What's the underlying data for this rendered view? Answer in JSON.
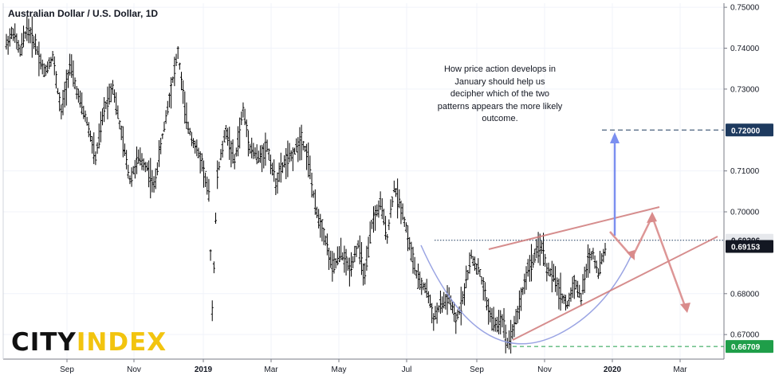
{
  "chart_data": {
    "type": "bar",
    "title": "Australian Dollar / U.S. Dollar, 1D",
    "ylim": [
      0.664,
      0.751
    ],
    "y_ticks": [
      "0.75000",
      "0.74000",
      "0.73000",
      "0.71000",
      "0.70000",
      "0.68000",
      "0.67000"
    ],
    "x_ticks": [
      "Sep",
      "Nov",
      "2019",
      "Mar",
      "May",
      "Jul",
      "Sep",
      "Nov",
      "2020",
      "Mar"
    ],
    "x_bold_ticks": [
      "2019",
      "2020"
    ],
    "price_labels": [
      {
        "text": "0.72000",
        "value": 0.72,
        "bg": "#1e3a5f",
        "fg": "#ffffff"
      },
      {
        "text": "0.69306",
        "value": 0.69306,
        "bg": "#e6e8ec",
        "fg": "#131722"
      },
      {
        "text": "0.69153",
        "value": 0.69153,
        "bg": "#131722",
        "fg": "#ffffff"
      },
      {
        "text": "0.66709",
        "value": 0.66709,
        "bg": "#1f9e49",
        "fg": "#ffffff"
      }
    ],
    "annotation": "How price action develops in January should help us decipher which of the two patterns appears the more likely outcome.",
    "price_path": [
      [
        0,
        0.741
      ],
      [
        4,
        0.744
      ],
      [
        8,
        0.739
      ],
      [
        12,
        0.745
      ],
      [
        17,
        0.741
      ],
      [
        22,
        0.734
      ],
      [
        27,
        0.738
      ],
      [
        32,
        0.724
      ],
      [
        37,
        0.736
      ],
      [
        42,
        0.728
      ],
      [
        47,
        0.722
      ],
      [
        52,
        0.713
      ],
      [
        57,
        0.725
      ],
      [
        62,
        0.731
      ],
      [
        67,
        0.719
      ],
      [
        72,
        0.708
      ],
      [
        77,
        0.713
      ],
      [
        82,
        0.711
      ],
      [
        86,
        0.706
      ],
      [
        90,
        0.716
      ],
      [
        95,
        0.728
      ],
      [
        100,
        0.739
      ],
      [
        105,
        0.722
      ],
      [
        110,
        0.716
      ],
      [
        114,
        0.712
      ],
      [
        118,
        0.704
      ],
      [
        120,
        0.676
      ],
      [
        123,
        0.709
      ],
      [
        128,
        0.72
      ],
      [
        133,
        0.712
      ],
      [
        138,
        0.725
      ],
      [
        142,
        0.716
      ],
      [
        147,
        0.713
      ],
      [
        152,
        0.716
      ],
      [
        157,
        0.707
      ],
      [
        162,
        0.712
      ],
      [
        167,
        0.714
      ],
      [
        172,
        0.718
      ],
      [
        176,
        0.713
      ],
      [
        180,
        0.701
      ],
      [
        185,
        0.695
      ],
      [
        190,
        0.686
      ],
      [
        195,
        0.69
      ],
      [
        200,
        0.686
      ],
      [
        205,
        0.692
      ],
      [
        209,
        0.684
      ],
      [
        213,
        0.697
      ],
      [
        218,
        0.702
      ],
      [
        222,
        0.694
      ],
      [
        226,
        0.706
      ],
      [
        231,
        0.7
      ],
      [
        236,
        0.69
      ],
      [
        240,
        0.683
      ],
      [
        245,
        0.681
      ],
      [
        249,
        0.674
      ],
      [
        253,
        0.677
      ],
      [
        258,
        0.679
      ],
      [
        262,
        0.673
      ],
      [
        266,
        0.679
      ],
      [
        271,
        0.689
      ],
      [
        276,
        0.685
      ],
      [
        281,
        0.676
      ],
      [
        285,
        0.672
      ],
      [
        289,
        0.674
      ],
      [
        292,
        0.668
      ],
      [
        296,
        0.672
      ],
      [
        300,
        0.679
      ],
      [
        304,
        0.686
      ],
      [
        308,
        0.689
      ],
      [
        312,
        0.692
      ],
      [
        315,
        0.686
      ],
      [
        319,
        0.684
      ],
      [
        323,
        0.68
      ],
      [
        327,
        0.677
      ],
      [
        331,
        0.683
      ],
      [
        335,
        0.679
      ],
      [
        339,
        0.688
      ],
      [
        342,
        0.69
      ],
      [
        345,
        0.685
      ],
      [
        349,
        0.691
      ]
    ]
  }
}
